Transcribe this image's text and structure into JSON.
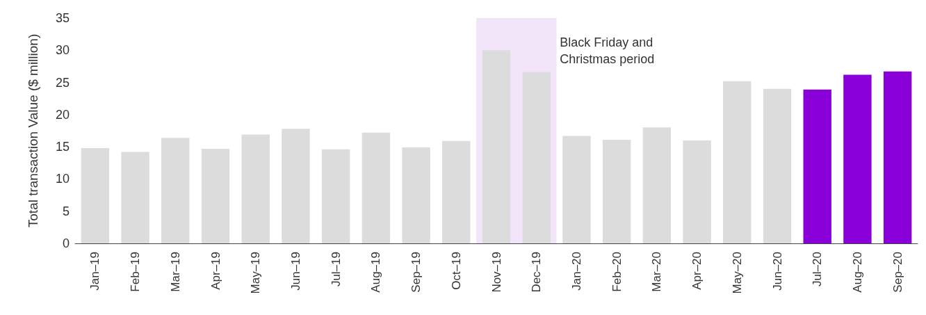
{
  "chart_data": {
    "type": "bar",
    "ylabel": "Total transaction Value ($ million)",
    "categories": [
      "Jan–19",
      "Feb–19",
      "Mar–19",
      "Apr–19",
      "May–19",
      "Jun–19",
      "Jul–19",
      "Aug–19",
      "Sep–19",
      "Oct–19",
      "Nov–19",
      "Dec–19",
      "Jan–20",
      "Feb–20",
      "Mar–20",
      "Apr–20",
      "May–20",
      "Jun–20",
      "Jul–20",
      "Aug–20",
      "Sep–20"
    ],
    "values": [
      14.8,
      14.2,
      16.4,
      14.7,
      16.9,
      17.8,
      14.6,
      17.2,
      14.9,
      15.9,
      30.0,
      26.6,
      16.7,
      16.1,
      18.0,
      16.0,
      25.2,
      24.0,
      23.9,
      26.2,
      26.7
    ],
    "colors": [
      "#dcdcdc",
      "#dcdcdc",
      "#dcdcdc",
      "#dcdcdc",
      "#dcdcdc",
      "#dcdcdc",
      "#dcdcdc",
      "#dcdcdc",
      "#dcdcdc",
      "#dcdcdc",
      "#dcdcdc",
      "#dcdcdc",
      "#dcdcdc",
      "#dcdcdc",
      "#dcdcdc",
      "#dcdcdc",
      "#dcdcdc",
      "#dcdcdc",
      "#8a00d9",
      "#8a00d9",
      "#8a00d9"
    ],
    "ylim": [
      0,
      35
    ],
    "yticks": [
      0,
      5,
      10,
      15,
      20,
      25,
      30,
      35
    ],
    "grid": false,
    "bands": [
      {
        "axis": "x",
        "from": "Nov–19",
        "to": "Dec–19",
        "label": "Black Friday and Christmas period",
        "color": "#f2e5f9"
      }
    ]
  }
}
